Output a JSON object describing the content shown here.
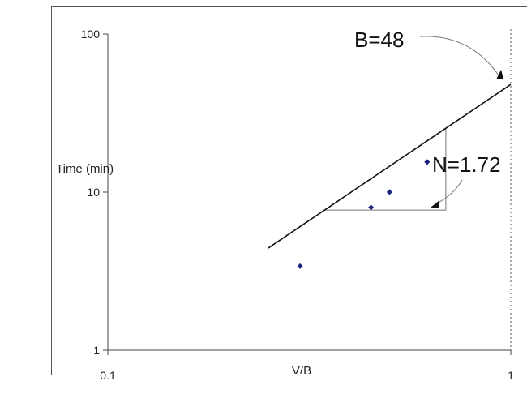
{
  "chart_data": {
    "type": "scatter",
    "scale": {
      "x": "log",
      "y": "log"
    },
    "xlabel": "V/B",
    "ylabel": "Time (min)",
    "xlim": [
      0.1,
      1
    ],
    "ylim": [
      1,
      100
    ],
    "x_ticks": [
      "0.1",
      "1"
    ],
    "y_ticks": [
      "1",
      "10",
      "100"
    ],
    "points": [
      {
        "x": 0.3,
        "y": 3.4
      },
      {
        "x": 0.45,
        "y": 8.0
      },
      {
        "x": 0.5,
        "y": 10.0
      },
      {
        "x": 0.62,
        "y": 15.5
      }
    ],
    "fit_line": {
      "x_start": 0.25,
      "x_end": 1.0,
      "B": 48,
      "N": 1.72
    },
    "slope_triangle": {
      "x_from": 0.345,
      "x_to": 0.69
    },
    "reference_line_x": 1.0,
    "annotations": [
      {
        "text": "B=48",
        "target": "fit line at V/B = 1"
      },
      {
        "text": "N=1.72",
        "target": "slope triangle"
      }
    ],
    "grid": false,
    "legend": "none"
  }
}
